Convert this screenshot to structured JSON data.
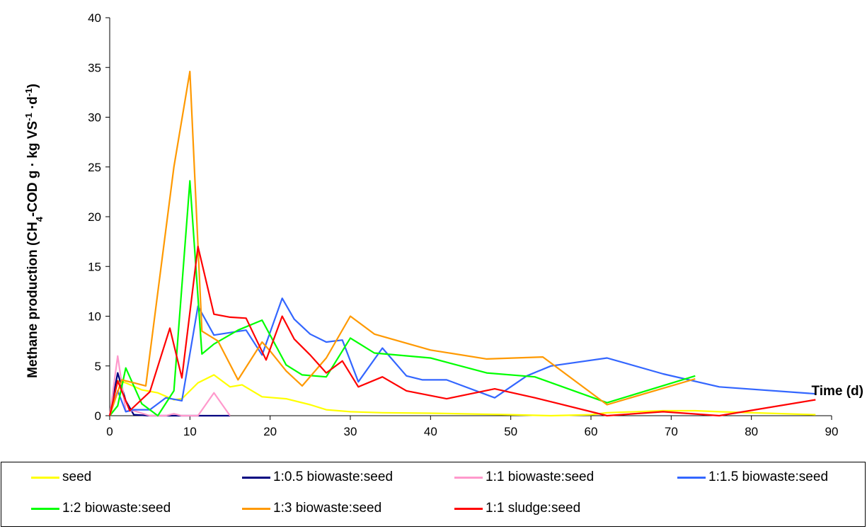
{
  "chart_data": {
    "type": "line",
    "title": "",
    "ylabel_parts": {
      "main": "Methane production (CH",
      "sub": "4",
      "mid": "-COD g · kg VS",
      "sup": "-1",
      "tail": " ·d",
      "sup2": "-1",
      "end": ")"
    },
    "xlabel": "Time (d)",
    "xlim": [
      0,
      90
    ],
    "ylim": [
      0,
      40
    ],
    "xticks": [
      0,
      10,
      20,
      30,
      40,
      50,
      60,
      70,
      80,
      90
    ],
    "yticks": [
      0,
      5,
      10,
      15,
      20,
      25,
      30,
      35,
      40
    ],
    "grid": false,
    "legend_position": "bottom",
    "series": [
      {
        "name": "seed",
        "color": "#ffff00",
        "points": [
          [
            0,
            0
          ],
          [
            1,
            3.5
          ],
          [
            2,
            3.3
          ],
          [
            4,
            2.6
          ],
          [
            6,
            2.3
          ],
          [
            8,
            1.6
          ],
          [
            9,
            1.7
          ],
          [
            11,
            3.3
          ],
          [
            13,
            4.1
          ],
          [
            15,
            2.9
          ],
          [
            16.5,
            3.1
          ],
          [
            19,
            1.9
          ],
          [
            22,
            1.7
          ],
          [
            25,
            1.1
          ],
          [
            27,
            0.6
          ],
          [
            30,
            0.4
          ],
          [
            34,
            0.3
          ],
          [
            40,
            0.25
          ],
          [
            50,
            0.1
          ],
          [
            55,
            0
          ],
          [
            60,
            0.1
          ],
          [
            62,
            0.3
          ],
          [
            69,
            0.5
          ],
          [
            73,
            0.5
          ],
          [
            76,
            0.4
          ],
          [
            88,
            0.1
          ]
        ]
      },
      {
        "name": "1:0.5 biowaste:seed",
        "color": "#000080",
        "points": [
          [
            0,
            0
          ],
          [
            1,
            4.3
          ],
          [
            2,
            1.5
          ],
          [
            3,
            0.1
          ],
          [
            5,
            0
          ],
          [
            8,
            0
          ],
          [
            10,
            0
          ],
          [
            12,
            0
          ],
          [
            15,
            0
          ]
        ]
      },
      {
        "name": "1:1 biowaste:seed",
        "color": "#ff99cc",
        "points": [
          [
            0,
            0
          ],
          [
            1,
            6.0
          ],
          [
            2,
            0.5
          ],
          [
            3,
            0.5
          ],
          [
            5,
            0
          ],
          [
            7,
            0
          ],
          [
            8,
            0.2
          ],
          [
            9,
            0
          ],
          [
            10,
            0
          ],
          [
            11,
            0
          ],
          [
            13,
            2.3
          ],
          [
            15,
            0
          ]
        ]
      },
      {
        "name": "1:1.5 biowaste:seed",
        "color": "#3366ff",
        "points": [
          [
            0,
            0
          ],
          [
            1,
            2.5
          ],
          [
            2,
            0.4
          ],
          [
            3,
            0.6
          ],
          [
            5,
            0.6
          ],
          [
            7,
            1.8
          ],
          [
            9,
            1.5
          ],
          [
            11,
            11.0
          ],
          [
            13,
            8.1
          ],
          [
            17,
            8.6
          ],
          [
            19,
            6.1
          ],
          [
            21.5,
            11.8
          ],
          [
            23,
            9.7
          ],
          [
            25,
            8.2
          ],
          [
            27,
            7.4
          ],
          [
            29,
            7.6
          ],
          [
            31,
            3.4
          ],
          [
            34,
            6.8
          ],
          [
            37,
            4.0
          ],
          [
            39,
            3.6
          ],
          [
            42,
            3.6
          ],
          [
            48,
            1.8
          ],
          [
            52,
            4.0
          ],
          [
            55,
            5.0
          ],
          [
            62,
            5.8
          ],
          [
            69,
            4.2
          ],
          [
            76,
            2.9
          ],
          [
            88,
            2.2
          ]
        ]
      },
      {
        "name": "1:2 biowaste:seed",
        "color": "#00ff00",
        "points": [
          [
            0,
            0
          ],
          [
            1,
            1.0
          ],
          [
            2,
            4.8
          ],
          [
            4,
            1.2
          ],
          [
            6,
            0
          ],
          [
            8,
            2.5
          ],
          [
            10,
            23.6
          ],
          [
            11.5,
            6.2
          ],
          [
            13,
            7.2
          ],
          [
            16,
            8.6
          ],
          [
            19,
            9.6
          ],
          [
            22,
            5.1
          ],
          [
            24,
            4.1
          ],
          [
            27,
            3.9
          ],
          [
            30,
            7.8
          ],
          [
            33,
            6.3
          ],
          [
            40,
            5.8
          ],
          [
            47,
            4.3
          ],
          [
            53,
            3.9
          ],
          [
            62,
            1.3
          ],
          [
            73,
            4.0
          ]
        ]
      },
      {
        "name": "1:3 biowaste:seed",
        "color": "#ff9900",
        "points": [
          [
            0,
            0
          ],
          [
            1.5,
            3.6
          ],
          [
            3,
            3.3
          ],
          [
            4.5,
            3.0
          ],
          [
            8,
            25.0
          ],
          [
            10,
            34.6
          ],
          [
            11.5,
            8.5
          ],
          [
            13.5,
            7.5
          ],
          [
            16,
            3.6
          ],
          [
            19,
            7.4
          ],
          [
            20,
            6.5
          ],
          [
            22,
            4.5
          ],
          [
            24,
            3.0
          ],
          [
            27,
            5.8
          ],
          [
            30,
            10.0
          ],
          [
            33,
            8.2
          ],
          [
            40,
            6.6
          ],
          [
            47,
            5.7
          ],
          [
            54,
            5.9
          ],
          [
            62,
            1.1
          ],
          [
            73,
            3.7
          ]
        ]
      },
      {
        "name": "1:1 sludge:seed",
        "color": "#ff0000",
        "points": [
          [
            0,
            0
          ],
          [
            1,
            3.5
          ],
          [
            2.5,
            0.5
          ],
          [
            5,
            2.4
          ],
          [
            7.5,
            8.8
          ],
          [
            9,
            3.8
          ],
          [
            11,
            17.0
          ],
          [
            13,
            10.2
          ],
          [
            15,
            9.9
          ],
          [
            17,
            9.8
          ],
          [
            19.5,
            5.6
          ],
          [
            21.5,
            10.0
          ],
          [
            23,
            7.7
          ],
          [
            25,
            6.1
          ],
          [
            27,
            4.3
          ],
          [
            29,
            5.5
          ],
          [
            31,
            2.9
          ],
          [
            34,
            3.9
          ],
          [
            37,
            2.5
          ],
          [
            42,
            1.7
          ],
          [
            48,
            2.7
          ],
          [
            53,
            1.8
          ],
          [
            56,
            1.2
          ],
          [
            62,
            0
          ],
          [
            69,
            0.4
          ],
          [
            76,
            0
          ],
          [
            88,
            1.6
          ]
        ]
      }
    ]
  }
}
